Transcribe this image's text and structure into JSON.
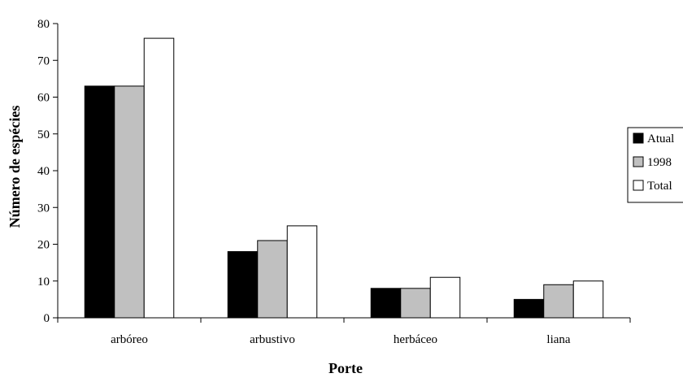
{
  "chart_data": {
    "type": "bar",
    "xlabel": "Porte",
    "ylabel": "Número de espécies",
    "ylim": [
      0,
      80
    ],
    "yticks": [
      0,
      10,
      20,
      30,
      40,
      50,
      60,
      70,
      80
    ],
    "categories": [
      "arbóreo",
      "arbustivo",
      "herbáceo",
      "liana"
    ],
    "series": [
      {
        "name": "Atual",
        "values": [
          63,
          18,
          8,
          5
        ],
        "color": "#000000"
      },
      {
        "name": "1998",
        "values": [
          63,
          21,
          8,
          9
        ],
        "color": "#c0c0c0"
      },
      {
        "name": "Total",
        "values": [
          76,
          25,
          11,
          10
        ],
        "color": "#ffffff"
      }
    ],
    "legend": "right",
    "grid": false
  }
}
